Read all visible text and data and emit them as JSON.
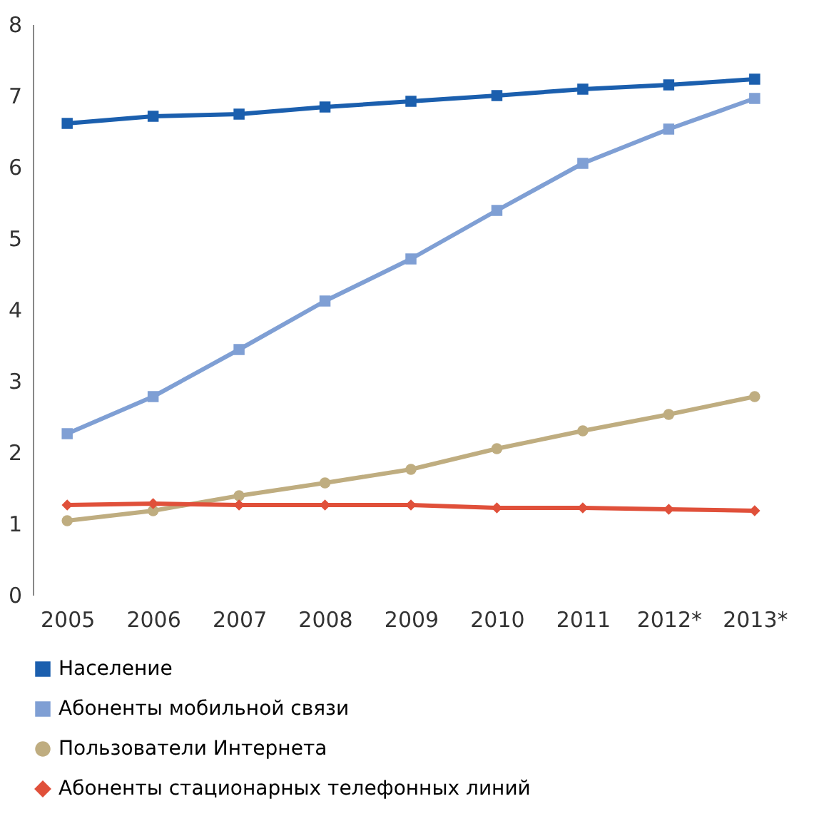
{
  "chart_data": {
    "type": "line",
    "categories": [
      "2005",
      "2006",
      "2007",
      "2008",
      "2009",
      "2010",
      "2011",
      "2012*",
      "2013*"
    ],
    "series": [
      {
        "name": "Население",
        "color": "#1b5fae",
        "marker": "square",
        "values": [
          6.61,
          6.71,
          6.74,
          6.84,
          6.92,
          7.0,
          7.09,
          7.15,
          7.23
        ]
      },
      {
        "name": "Абоненты мобильной связи",
        "color": "#7f9fd4",
        "marker": "square",
        "values": [
          2.26,
          2.78,
          3.44,
          4.12,
          4.71,
          5.39,
          6.05,
          6.53,
          6.96
        ]
      },
      {
        "name": "Пользователи Интернета",
        "color": "#bfad80",
        "marker": "circle",
        "values": [
          1.04,
          1.18,
          1.39,
          1.57,
          1.76,
          2.05,
          2.3,
          2.53,
          2.78
        ]
      },
      {
        "name": "Абоненты стационарных телефонных линий",
        "color": "#e0503a",
        "marker": "diamond",
        "values": [
          1.26,
          1.28,
          1.26,
          1.26,
          1.26,
          1.22,
          1.22,
          1.2,
          1.18
        ]
      }
    ],
    "ylim": [
      0,
      8
    ],
    "yticks": [
      0,
      1,
      2,
      3,
      4,
      5,
      6,
      7,
      8
    ],
    "grid": false,
    "legend": "bottom",
    "line_style": "solid"
  }
}
